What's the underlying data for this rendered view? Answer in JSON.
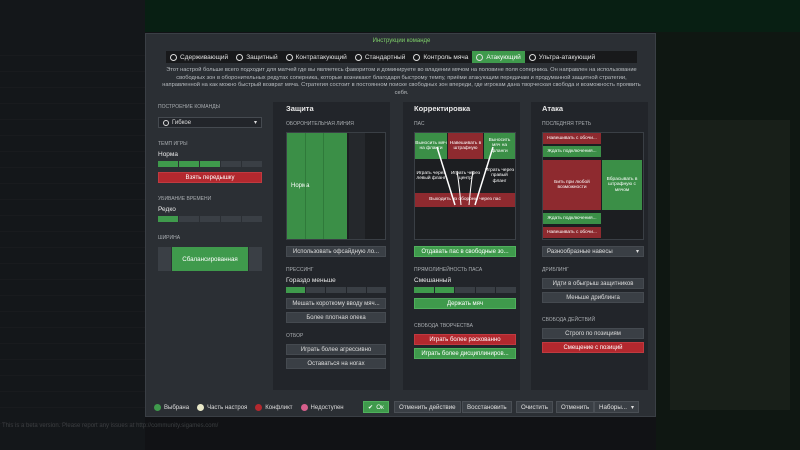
{
  "background": {
    "footer_text": "This is a beta version. Please report any issues at http://community.sigames.com/"
  },
  "modal": {
    "title": "Инструкции команде"
  },
  "tabs": [
    {
      "label": "Сдерживающий"
    },
    {
      "label": "Защитный"
    },
    {
      "label": "Контратакующий"
    },
    {
      "label": "Стандартный"
    },
    {
      "label": "Контроль мяча"
    },
    {
      "label": "Атакующий",
      "active": true
    },
    {
      "label": "Ультра-атакующий"
    }
  ],
  "description": "Этот настрой больше всего подходит для матчей где вы являетесь фаворитом и доминируете во владении мячом на половине поля соперника. Он направлен на использование свободных зон в оборонительных редутах соперника, которые возникают благодаря быстрому темпу, приёми атакующим передачам и продуманной защитной стратегии, направленной на как можно быстрый возврат мяча. Стратегия состоит в постоянном поиске свободных зон впереди, где игрокам дана творческая свобода и возможность проявить себя.",
  "left": {
    "build_title": "Построение команды",
    "formation": "Гибкое",
    "tempo_label": "Темп игры",
    "tempo_value": "Норма",
    "tempo_level": 0.55,
    "tempo_button": "Взять передышку",
    "time_label": "Убивание времени",
    "time_value": "Редко",
    "time_level": 0.2,
    "width_label": "Ширина",
    "width_value": "Сбалансированная"
  },
  "defense": {
    "title": "Защита",
    "line_label": "Оборонительная линия",
    "line_value": "Норма",
    "offside_button": "Использовать офсайдную ло...",
    "press_label": "Прессинг",
    "press_value": "Гораздо меньше",
    "press_level": 0.15,
    "btn1": "Мешать короткому вводу мяч...",
    "btn2": "Более плотная опека",
    "tackle_label": "Отбор",
    "btn3": "Играть более агрессивно",
    "btn4": "Оставаться на ногах"
  },
  "adjust": {
    "title": "Корректировка",
    "pass_label": "Пас",
    "zones": {
      "z1": "Выносить мяч на фланги",
      "z2": "Навешивать в штрафную",
      "z3": "Выносить мяч на фланги",
      "z4": "Играть через левый фланг",
      "z5": "Играть через центр",
      "z6": "Играть через правый фланг",
      "z7": "Выходить из обороны через пас"
    },
    "free_button": "Отдавать пас в свободные зо...",
    "direct_label": "Прямолинейность паса",
    "direct_value": "Смешанный",
    "direct_level": 0.3,
    "hold_button": "Держать мяч",
    "creative_label": "Свобода творчества",
    "btn_loose": "Играть более раскованно",
    "btn_disc": "Играть более дисциплиниров..."
  },
  "attack": {
    "title": "Атака",
    "third_label": "Последняя треть",
    "zones": {
      "a1": "Навешивать с обочи...",
      "a2": "Ждать подключения...",
      "a3": "Бить при любой возможности",
      "a4": "Вбрасывать в штрафную с мячом",
      "a5": "Ждать подключения...",
      "a6": "Навешивать с обочи..."
    },
    "cross_button": "Разнообразные навесы",
    "dribble_label": "Дриблинг",
    "btn_dribble_more": "Идти в обыгрыш защитников",
    "btn_dribble_less": "Меньше дриблинга",
    "action_label": "Свобода действий",
    "btn_positions": "Строго по позициям",
    "btn_shift": "Смещение с позиций"
  },
  "footer": {
    "legend": [
      {
        "label": "Выбрана",
        "color": "#3f9a4c"
      },
      {
        "label": "Часть настроя",
        "color": "#e8e8c8"
      },
      {
        "label": "Конфликт",
        "color": "#b3282e"
      },
      {
        "label": "Недоступен",
        "color": "#d65f8c"
      }
    ],
    "ok": "Ок",
    "undo": "Отменить действие",
    "restore": "Восстановить",
    "clear": "Очистить",
    "cancel": "Отменить",
    "presets": "Наборы..."
  }
}
